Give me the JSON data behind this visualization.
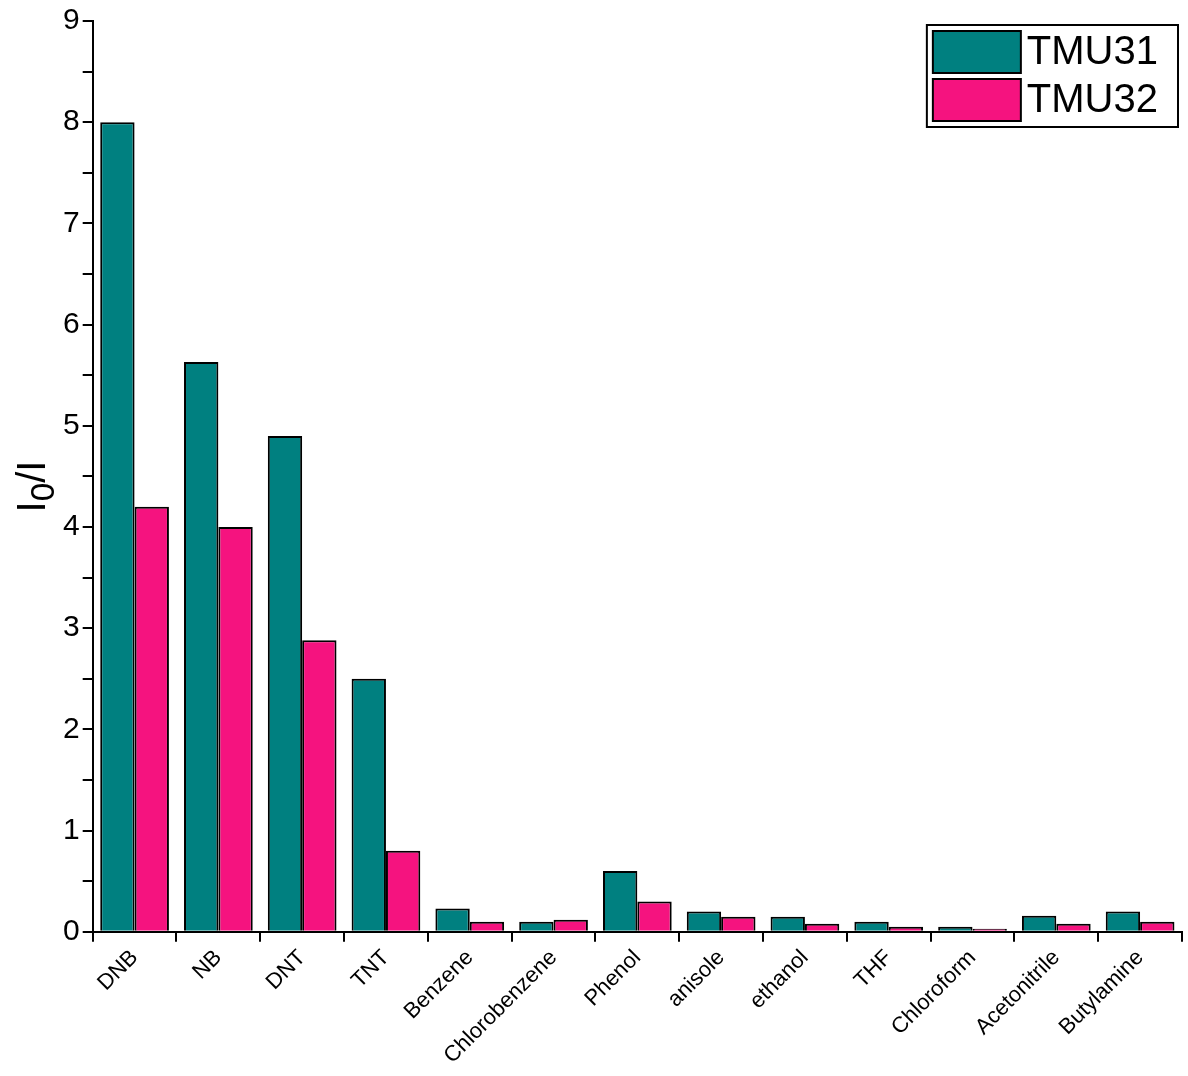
{
  "chart_data": {
    "type": "bar",
    "ylabel": "I$_{0}$/I",
    "categories": [
      "DNB",
      "NB",
      "DNT",
      "TNT",
      "Benzene",
      "Chlorobenzene",
      "Phenol",
      "anisole",
      "ethanol",
      "THF",
      "Chloroform",
      "Acetonitrile",
      "Butylamine"
    ],
    "series": [
      {
        "name": "TMU31",
        "color": "#008080",
        "values": [
          8.0,
          5.63,
          4.9,
          2.5,
          0.23,
          0.1,
          0.6,
          0.2,
          0.15,
          0.1,
          0.05,
          0.16,
          0.2
        ]
      },
      {
        "name": "TMU32",
        "color": "#f5137f",
        "values": [
          4.2,
          4.0,
          2.88,
          0.8,
          0.1,
          0.12,
          0.3,
          0.15,
          0.08,
          0.05,
          0.03,
          0.08,
          0.1
        ]
      }
    ],
    "ylim": [
      0,
      9
    ],
    "yticks": [
      0,
      {
        "value": 0.5,
        "label": null
      },
      1,
      {
        "value": 1.5,
        "label": null
      },
      2,
      {
        "value": 2.5,
        "label": null
      },
      3,
      {
        "value": 3.5,
        "label": null
      },
      4,
      {
        "value": 4.5,
        "label": null
      },
      5,
      {
        "value": 5.5,
        "label": null
      },
      6,
      {
        "value": 6.5,
        "label": null
      },
      7,
      {
        "value": 7.5,
        "label": null
      },
      8,
      {
        "value": 8.5,
        "label": null
      },
      9
    ],
    "grid": false,
    "legend": "top right"
  }
}
